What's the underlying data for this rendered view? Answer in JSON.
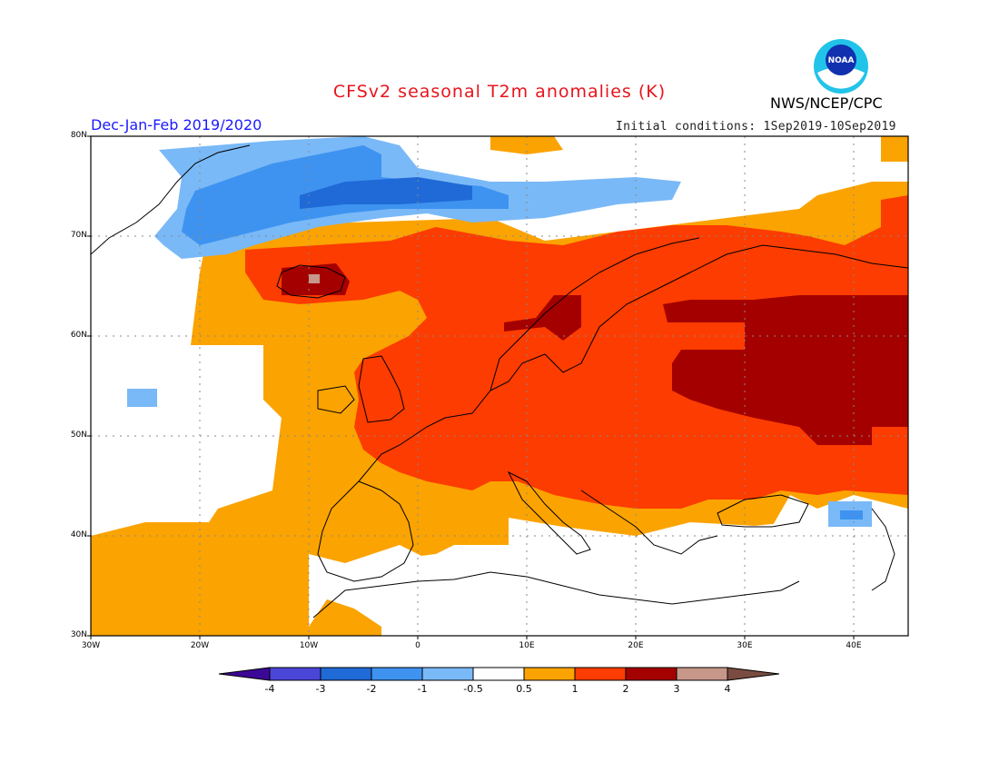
{
  "title": "CFSv2 seasonal T2m anomalies (K)",
  "org": "NWS/NCEP/CPC",
  "logo_text": "NOAA",
  "season": "Dec-Jan-Feb 2019/2020",
  "initial_conditions": "Initial conditions: 1Sep2019-10Sep2019",
  "lat_labels": [
    "80N",
    "70N",
    "60N",
    "50N",
    "40N",
    "30N"
  ],
  "lon_labels": [
    "30W",
    "20W",
    "10W",
    "0",
    "10E",
    "20E",
    "30E",
    "40E"
  ],
  "colorbar": {
    "labels": [
      "-4",
      "-3",
      "-2",
      "-1",
      "-0.5",
      "0.5",
      "1",
      "2",
      "3",
      "4"
    ],
    "colors": [
      "#3c0896",
      "#4a46d8",
      "#1f6ad6",
      "#3e93f0",
      "#7ab9f7",
      "#ffffff",
      "#fba300",
      "#fc3c00",
      "#a50000",
      "#c7978a",
      "#7a4c41"
    ]
  },
  "map_extent": {
    "lon_min": -30,
    "lon_max": 45,
    "lat_min": 30,
    "lat_max": 80
  },
  "anomaly_regions": {
    "colors": {
      "b3": "#1f6ad6",
      "b2": "#3e93f0",
      "b1": "#7ab9f7",
      "o": "#fba300",
      "r": "#fc3c00",
      "d": "#a50000",
      "p": "#c7978a"
    }
  }
}
